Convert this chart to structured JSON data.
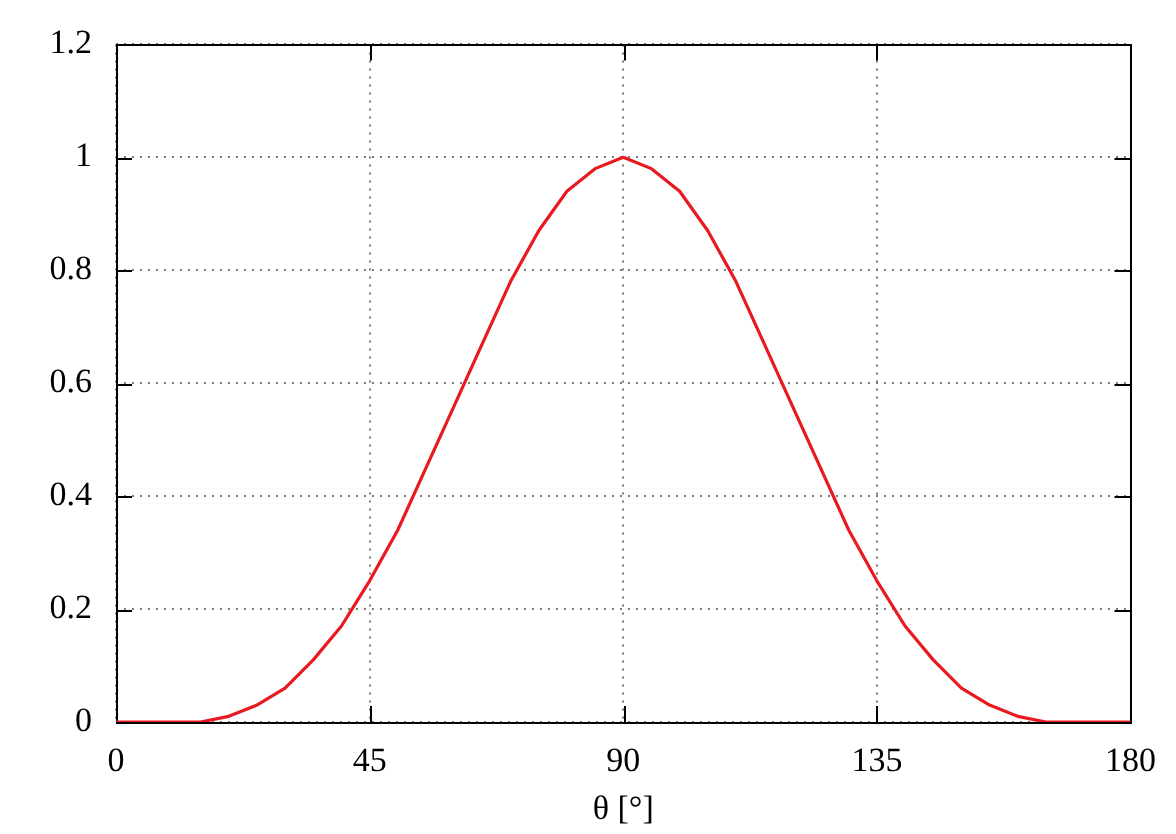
{
  "chart_data": {
    "type": "line",
    "xlabel": "θ [°]",
    "x": [
      0,
      5,
      10,
      15,
      20,
      25,
      30,
      35,
      40,
      45,
      50,
      55,
      60,
      65,
      70,
      75,
      80,
      85,
      90,
      95,
      100,
      105,
      110,
      115,
      120,
      125,
      130,
      135,
      140,
      145,
      150,
      155,
      160,
      165,
      170,
      175,
      180
    ],
    "series": [
      {
        "color": "#e8191f",
        "values": [
          0,
          0,
          0,
          0,
          0.01,
          0.03,
          0.06,
          0.11,
          0.17,
          0.25,
          0.34,
          0.45,
          0.56,
          0.67,
          0.78,
          0.87,
          0.94,
          0.98,
          1,
          0.98,
          0.94,
          0.87,
          0.78,
          0.67,
          0.56,
          0.45,
          0.34,
          0.25,
          0.17,
          0.11,
          0.06,
          0.03,
          0.01,
          0,
          0,
          0,
          0
        ]
      }
    ],
    "xlim": [
      0,
      180
    ],
    "xticks": [
      0,
      45,
      90,
      135,
      180
    ],
    "ylim": [
      0,
      1.2
    ],
    "yticks": [
      0,
      0.2,
      0.4,
      0.6,
      0.8,
      1,
      1.2
    ],
    "grid": true,
    "marker": "none",
    "line_style": "solid"
  }
}
